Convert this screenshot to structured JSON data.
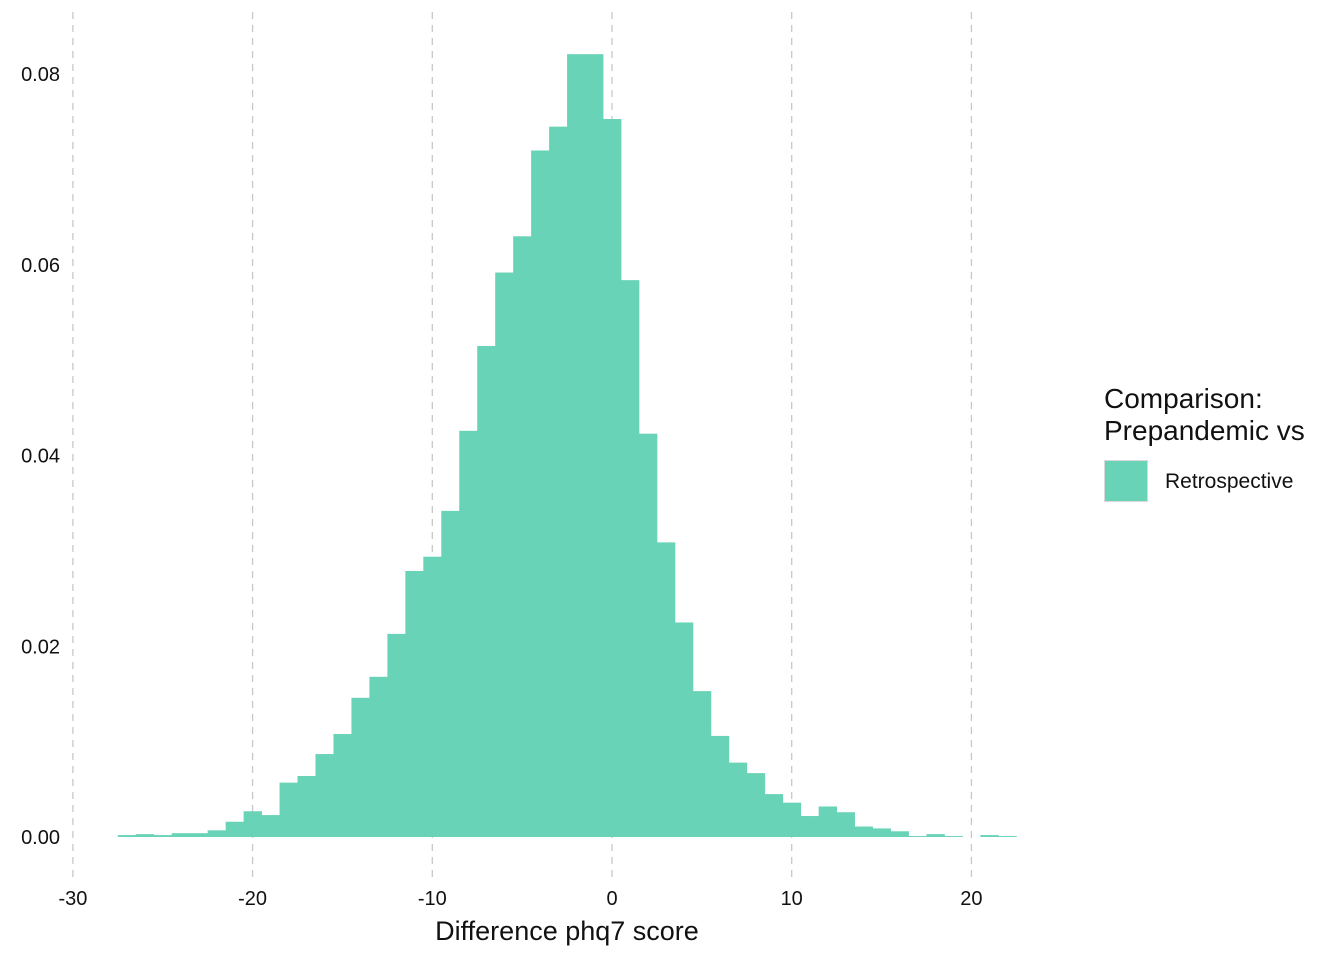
{
  "chart_data": {
    "type": "bar",
    "subtype": "histogram",
    "xlabel": "Difference phq7 score",
    "ylabel": "",
    "xlim": [
      -30,
      22.5
    ],
    "ylim": [
      0,
      0.085
    ],
    "x_ticks": [
      -30,
      -20,
      -10,
      0,
      10,
      20
    ],
    "x_tick_labels": [
      "-30",
      "-20",
      "-10",
      "0",
      "10",
      "20"
    ],
    "y_ticks": [
      0.0,
      0.02,
      0.04,
      0.06,
      0.08
    ],
    "y_tick_labels": [
      "0.00",
      "0.02",
      "0.04",
      "0.06",
      "0.08"
    ],
    "bin_width": 1,
    "grid": "vertical major gridlines, dashed",
    "legend": {
      "title_lines": [
        "Comparison:",
        "Prepandemic vs"
      ],
      "placement": "right",
      "entries": [
        {
          "label": "Retrospective",
          "color": "#69d3b7"
        }
      ]
    },
    "series": [
      {
        "name": "Retrospective",
        "color": "#69d3b7",
        "bins": [
          {
            "x0": -27.5,
            "x1": -26.5,
            "y": 0.0002
          },
          {
            "x0": -26.5,
            "x1": -25.5,
            "y": 0.0003
          },
          {
            "x0": -25.5,
            "x1": -24.5,
            "y": 0.0002
          },
          {
            "x0": -24.5,
            "x1": -23.5,
            "y": 0.0004
          },
          {
            "x0": -23.5,
            "x1": -22.5,
            "y": 0.0004
          },
          {
            "x0": -22.5,
            "x1": -21.5,
            "y": 0.0007
          },
          {
            "x0": -21.5,
            "x1": -20.5,
            "y": 0.0016
          },
          {
            "x0": -20.5,
            "x1": -19.5,
            "y": 0.0027
          },
          {
            "x0": -19.5,
            "x1": -18.5,
            "y": 0.0023
          },
          {
            "x0": -18.5,
            "x1": -17.5,
            "y": 0.0057
          },
          {
            "x0": -17.5,
            "x1": -16.5,
            "y": 0.0064
          },
          {
            "x0": -16.5,
            "x1": -15.5,
            "y": 0.0087
          },
          {
            "x0": -15.5,
            "x1": -14.5,
            "y": 0.0108
          },
          {
            "x0": -14.5,
            "x1": -13.5,
            "y": 0.0146
          },
          {
            "x0": -13.5,
            "x1": -12.5,
            "y": 0.0168
          },
          {
            "x0": -12.5,
            "x1": -11.5,
            "y": 0.0213
          },
          {
            "x0": -11.5,
            "x1": -10.5,
            "y": 0.0279
          },
          {
            "x0": -10.5,
            "x1": -9.5,
            "y": 0.0294
          },
          {
            "x0": -9.5,
            "x1": -8.5,
            "y": 0.0342
          },
          {
            "x0": -8.5,
            "x1": -7.5,
            "y": 0.0426
          },
          {
            "x0": -7.5,
            "x1": -6.5,
            "y": 0.0515
          },
          {
            "x0": -6.5,
            "x1": -5.5,
            "y": 0.0592
          },
          {
            "x0": -5.5,
            "x1": -4.5,
            "y": 0.063
          },
          {
            "x0": -4.5,
            "x1": -3.5,
            "y": 0.072
          },
          {
            "x0": -3.5,
            "x1": -2.5,
            "y": 0.0745
          },
          {
            "x0": -2.5,
            "x1": -1.5,
            "y": 0.0821
          },
          {
            "x0": -1.5,
            "x1": -0.5,
            "y": 0.0821
          },
          {
            "x0": -0.5,
            "x1": 0.5,
            "y": 0.0753
          },
          {
            "x0": 0.5,
            "x1": 1.5,
            "y": 0.0584
          },
          {
            "x0": 1.5,
            "x1": 2.5,
            "y": 0.0423
          },
          {
            "x0": 2.5,
            "x1": 3.5,
            "y": 0.0309
          },
          {
            "x0": 3.5,
            "x1": 4.5,
            "y": 0.0225
          },
          {
            "x0": 4.5,
            "x1": 5.5,
            "y": 0.0153
          },
          {
            "x0": 5.5,
            "x1": 6.5,
            "y": 0.0106
          },
          {
            "x0": 6.5,
            "x1": 7.5,
            "y": 0.0078
          },
          {
            "x0": 7.5,
            "x1": 8.5,
            "y": 0.0067
          },
          {
            "x0": 8.5,
            "x1": 9.5,
            "y": 0.0045
          },
          {
            "x0": 9.5,
            "x1": 10.5,
            "y": 0.0036
          },
          {
            "x0": 10.5,
            "x1": 11.5,
            "y": 0.0022
          },
          {
            "x0": 11.5,
            "x1": 12.5,
            "y": 0.0032
          },
          {
            "x0": 12.5,
            "x1": 13.5,
            "y": 0.0026
          },
          {
            "x0": 13.5,
            "x1": 14.5,
            "y": 0.0011
          },
          {
            "x0": 14.5,
            "x1": 15.5,
            "y": 0.0009
          },
          {
            "x0": 15.5,
            "x1": 16.5,
            "y": 0.0006
          },
          {
            "x0": 16.5,
            "x1": 17.5,
            "y": 0.0001
          },
          {
            "x0": 17.5,
            "x1": 18.5,
            "y": 0.0003
          },
          {
            "x0": 18.5,
            "x1": 19.5,
            "y": 0.0001
          },
          {
            "x0": 19.5,
            "x1": 20.5,
            "y": 0.0
          },
          {
            "x0": 20.5,
            "x1": 21.5,
            "y": 0.0002
          },
          {
            "x0": 21.5,
            "x1": 22.5,
            "y": 0.0001
          }
        ]
      }
    ]
  }
}
